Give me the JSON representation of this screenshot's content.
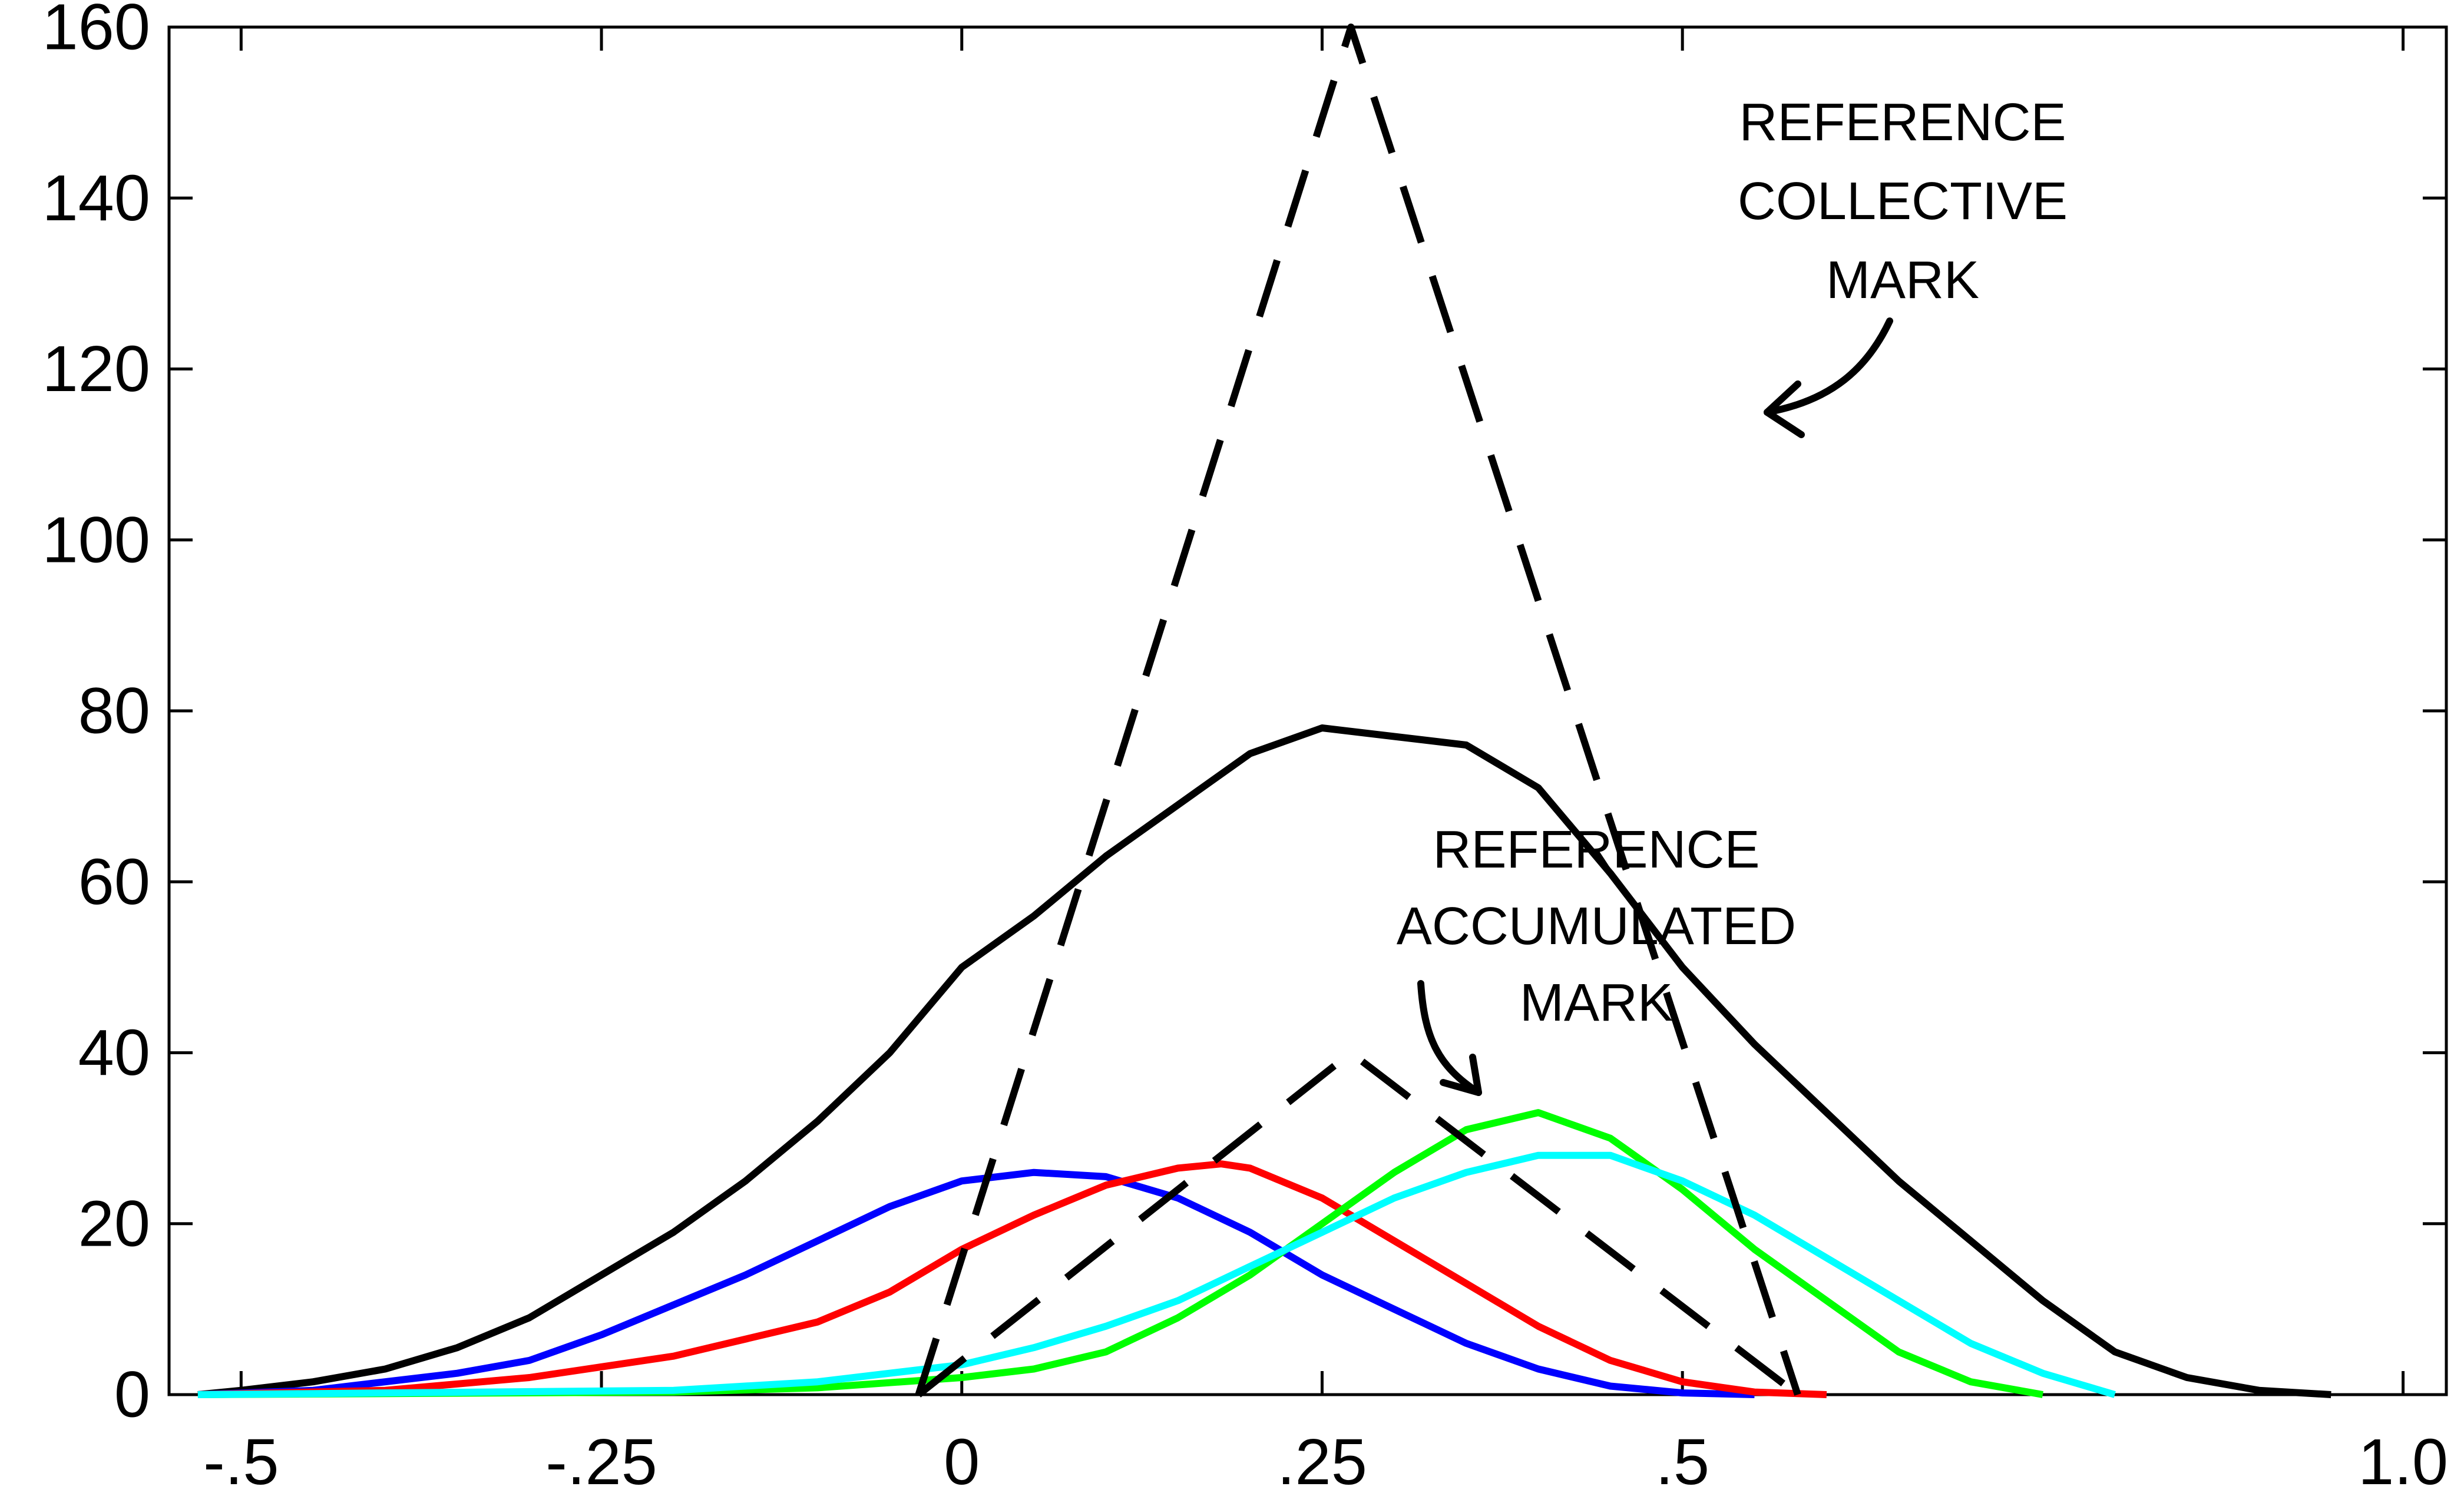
{
  "chart_data": {
    "type": "line",
    "title": "",
    "xlabel": "",
    "ylabel": "",
    "xlim": [
      -0.55,
      1.03
    ],
    "ylim": [
      0,
      160
    ],
    "x_ticks": [
      {
        "value": -0.5,
        "label": "-.5"
      },
      {
        "value": -0.25,
        "label": "-.25"
      },
      {
        "value": 0,
        "label": "0"
      },
      {
        "value": 0.25,
        "label": ".25"
      },
      {
        "value": 0.5,
        "label": ".5"
      },
      {
        "value": 1.0,
        "label": "1.0"
      }
    ],
    "y_ticks": [
      {
        "value": 0,
        "label": "0"
      },
      {
        "value": 20,
        "label": "20"
      },
      {
        "value": 40,
        "label": "40"
      },
      {
        "value": 60,
        "label": "60"
      },
      {
        "value": 80,
        "label": "80"
      },
      {
        "value": 100,
        "label": "100"
      },
      {
        "value": 120,
        "label": "120"
      },
      {
        "value": 140,
        "label": "140"
      },
      {
        "value": 160,
        "label": "160"
      }
    ],
    "grid": false,
    "series": [
      {
        "color": "#000000",
        "style": "solid",
        "points": [
          [
            -0.53,
            0
          ],
          [
            -0.5,
            0.5
          ],
          [
            -0.45,
            1.5
          ],
          [
            -0.4,
            3
          ],
          [
            -0.35,
            5.5
          ],
          [
            -0.3,
            9
          ],
          [
            -0.25,
            14
          ],
          [
            -0.2,
            19
          ],
          [
            -0.15,
            25
          ],
          [
            -0.1,
            32
          ],
          [
            -0.05,
            40
          ],
          [
            0,
            50
          ],
          [
            0.05,
            56
          ],
          [
            0.1,
            63
          ],
          [
            0.15,
            69
          ],
          [
            0.2,
            75
          ],
          [
            0.25,
            78
          ],
          [
            0.3,
            77
          ],
          [
            0.35,
            76
          ],
          [
            0.4,
            71
          ],
          [
            0.45,
            61
          ],
          [
            0.5,
            50
          ],
          [
            0.55,
            41
          ],
          [
            0.6,
            33
          ],
          [
            0.65,
            25
          ],
          [
            0.7,
            18
          ],
          [
            0.75,
            11
          ],
          [
            0.8,
            5
          ],
          [
            0.85,
            2
          ],
          [
            0.9,
            0.5
          ],
          [
            0.95,
            0
          ]
        ]
      },
      {
        "color": "#0000ff",
        "style": "solid",
        "points": [
          [
            -0.53,
            0
          ],
          [
            -0.45,
            0.5
          ],
          [
            -0.35,
            2.5
          ],
          [
            -0.3,
            4
          ],
          [
            -0.25,
            7
          ],
          [
            -0.2,
            10.5
          ],
          [
            -0.15,
            14
          ],
          [
            -0.1,
            18
          ],
          [
            -0.05,
            22
          ],
          [
            0,
            25
          ],
          [
            0.05,
            26
          ],
          [
            0.1,
            25.5
          ],
          [
            0.15,
            23
          ],
          [
            0.2,
            19
          ],
          [
            0.25,
            14
          ],
          [
            0.3,
            10
          ],
          [
            0.35,
            6
          ],
          [
            0.4,
            3
          ],
          [
            0.45,
            1
          ],
          [
            0.5,
            0.2
          ],
          [
            0.55,
            0
          ]
        ]
      },
      {
        "color": "#ff0000",
        "style": "solid",
        "points": [
          [
            -0.53,
            0
          ],
          [
            -0.4,
            0.5
          ],
          [
            -0.3,
            2
          ],
          [
            -0.2,
            4.5
          ],
          [
            -0.1,
            8.5
          ],
          [
            -0.05,
            12
          ],
          [
            0,
            17
          ],
          [
            0.05,
            21
          ],
          [
            0.1,
            24.5
          ],
          [
            0.15,
            26.5
          ],
          [
            0.18,
            27
          ],
          [
            0.2,
            26.5
          ],
          [
            0.25,
            23
          ],
          [
            0.3,
            18
          ],
          [
            0.35,
            13
          ],
          [
            0.4,
            8
          ],
          [
            0.45,
            4
          ],
          [
            0.5,
            1.5
          ],
          [
            0.55,
            0.3
          ],
          [
            0.6,
            0
          ]
        ]
      },
      {
        "color": "#00ff00",
        "style": "solid",
        "points": [
          [
            -0.53,
            0
          ],
          [
            -0.2,
            0.3
          ],
          [
            -0.1,
            0.8
          ],
          [
            0,
            2
          ],
          [
            0.05,
            3
          ],
          [
            0.1,
            5
          ],
          [
            0.15,
            9
          ],
          [
            0.2,
            14
          ],
          [
            0.25,
            20
          ],
          [
            0.3,
            26
          ],
          [
            0.35,
            31
          ],
          [
            0.4,
            33
          ],
          [
            0.45,
            30
          ],
          [
            0.5,
            24
          ],
          [
            0.55,
            17
          ],
          [
            0.6,
            11
          ],
          [
            0.65,
            5
          ],
          [
            0.7,
            1.5
          ],
          [
            0.75,
            0
          ]
        ]
      },
      {
        "color": "#00ffff",
        "style": "solid",
        "points": [
          [
            -0.53,
            0
          ],
          [
            -0.2,
            0.5
          ],
          [
            -0.1,
            1.5
          ],
          [
            0,
            3.5
          ],
          [
            0.05,
            5.5
          ],
          [
            0.1,
            8
          ],
          [
            0.15,
            11
          ],
          [
            0.2,
            15
          ],
          [
            0.25,
            19
          ],
          [
            0.3,
            23
          ],
          [
            0.35,
            26
          ],
          [
            0.4,
            28
          ],
          [
            0.45,
            28
          ],
          [
            0.5,
            25
          ],
          [
            0.55,
            21
          ],
          [
            0.6,
            16
          ],
          [
            0.65,
            11
          ],
          [
            0.7,
            6
          ],
          [
            0.75,
            2.5
          ],
          [
            0.8,
            0
          ]
        ]
      },
      {
        "color": "#000000",
        "style": "dashed",
        "points": [
          [
            -0.03,
            0
          ],
          [
            0.27,
            160
          ],
          [
            0.58,
            0
          ]
        ]
      },
      {
        "color": "#000000",
        "style": "dashed",
        "points": [
          [
            -0.03,
            0
          ],
          [
            0.27,
            40
          ],
          [
            0.58,
            0
          ]
        ]
      }
    ],
    "annotations": [
      {
        "lines": [
          "REFERENCE",
          "COLLECTIVE",
          "MARK"
        ]
      },
      {
        "lines": [
          "REFERENCE",
          "ACCUMULATED",
          "MARK"
        ]
      }
    ]
  }
}
